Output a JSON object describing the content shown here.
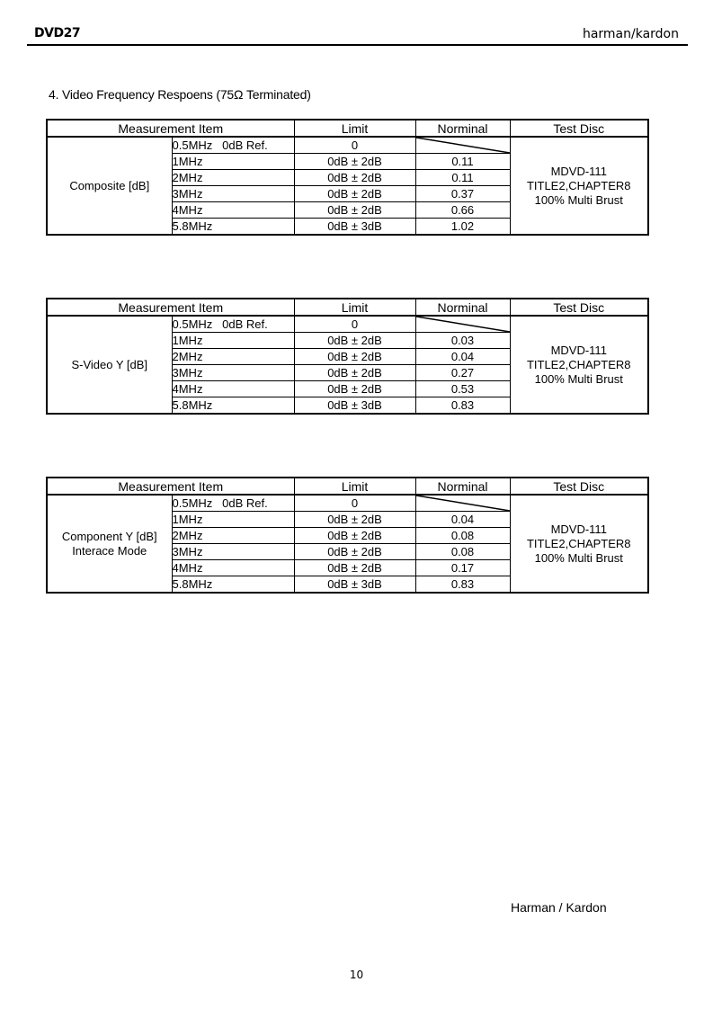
{
  "header": {
    "model": "DVD27",
    "brand": "harman/kardon"
  },
  "section_title": "4. Video Frequency Respoens (75Ω Terminated)",
  "columns": {
    "item": "Measurement Item",
    "limit": "Limit",
    "nominal": "Norminal",
    "disc": "Test Disc"
  },
  "tables": [
    {
      "item_line1": "Composite [dB]",
      "item_line2": "",
      "disc": [
        "MDVD-111",
        "TITLE2,CHAPTER8",
        "100% Multi Brust"
      ],
      "rows": [
        {
          "freq": "0.5MHz   0dB Ref.",
          "limit": "0",
          "nominal": ""
        },
        {
          "freq": "1MHz",
          "limit": "0dB ± 2dB",
          "nominal": "0.11"
        },
        {
          "freq": "2MHz",
          "limit": "0dB ± 2dB",
          "nominal": "0.11"
        },
        {
          "freq": "3MHz",
          "limit": "0dB ± 2dB",
          "nominal": "0.37"
        },
        {
          "freq": "4MHz",
          "limit": "0dB ± 2dB",
          "nominal": "0.66"
        },
        {
          "freq": "5.8MHz",
          "limit": "0dB ± 3dB",
          "nominal": "1.02"
        }
      ]
    },
    {
      "item_line1": "S-Video Y [dB]",
      "item_line2": "",
      "disc": [
        "MDVD-111",
        "TITLE2,CHAPTER8",
        "100% Multi Brust"
      ],
      "rows": [
        {
          "freq": "0.5MHz   0dB Ref.",
          "limit": "0",
          "nominal": ""
        },
        {
          "freq": "1MHz",
          "limit": "0dB ± 2dB",
          "nominal": "0.03"
        },
        {
          "freq": "2MHz",
          "limit": "0dB ± 2dB",
          "nominal": "0.04"
        },
        {
          "freq": "3MHz",
          "limit": "0dB ± 2dB",
          "nominal": "0.27"
        },
        {
          "freq": "4MHz",
          "limit": "0dB ± 2dB",
          "nominal": "0.53"
        },
        {
          "freq": "5.8MHz",
          "limit": "0dB ± 3dB",
          "nominal": "0.83"
        }
      ]
    },
    {
      "item_line1": "Component Y [dB]",
      "item_line2": "Interace Mode",
      "disc": [
        "MDVD-111",
        "TITLE2,CHAPTER8",
        "100% Multi Brust"
      ],
      "rows": [
        {
          "freq": "0.5MHz   0dB Ref.",
          "limit": "0",
          "nominal": ""
        },
        {
          "freq": "1MHz",
          "limit": "0dB ± 2dB",
          "nominal": "0.04"
        },
        {
          "freq": "2MHz",
          "limit": "0dB ± 2dB",
          "nominal": "0.08"
        },
        {
          "freq": "3MHz",
          "limit": "0dB ± 2dB",
          "nominal": "0.08"
        },
        {
          "freq": "4MHz",
          "limit": "0dB ± 2dB",
          "nominal": "0.17"
        },
        {
          "freq": "5.8MHz",
          "limit": "0dB ± 3dB",
          "nominal": "0.83"
        }
      ]
    }
  ],
  "footer": {
    "brand": "Harman / Kardon",
    "page": "10"
  }
}
